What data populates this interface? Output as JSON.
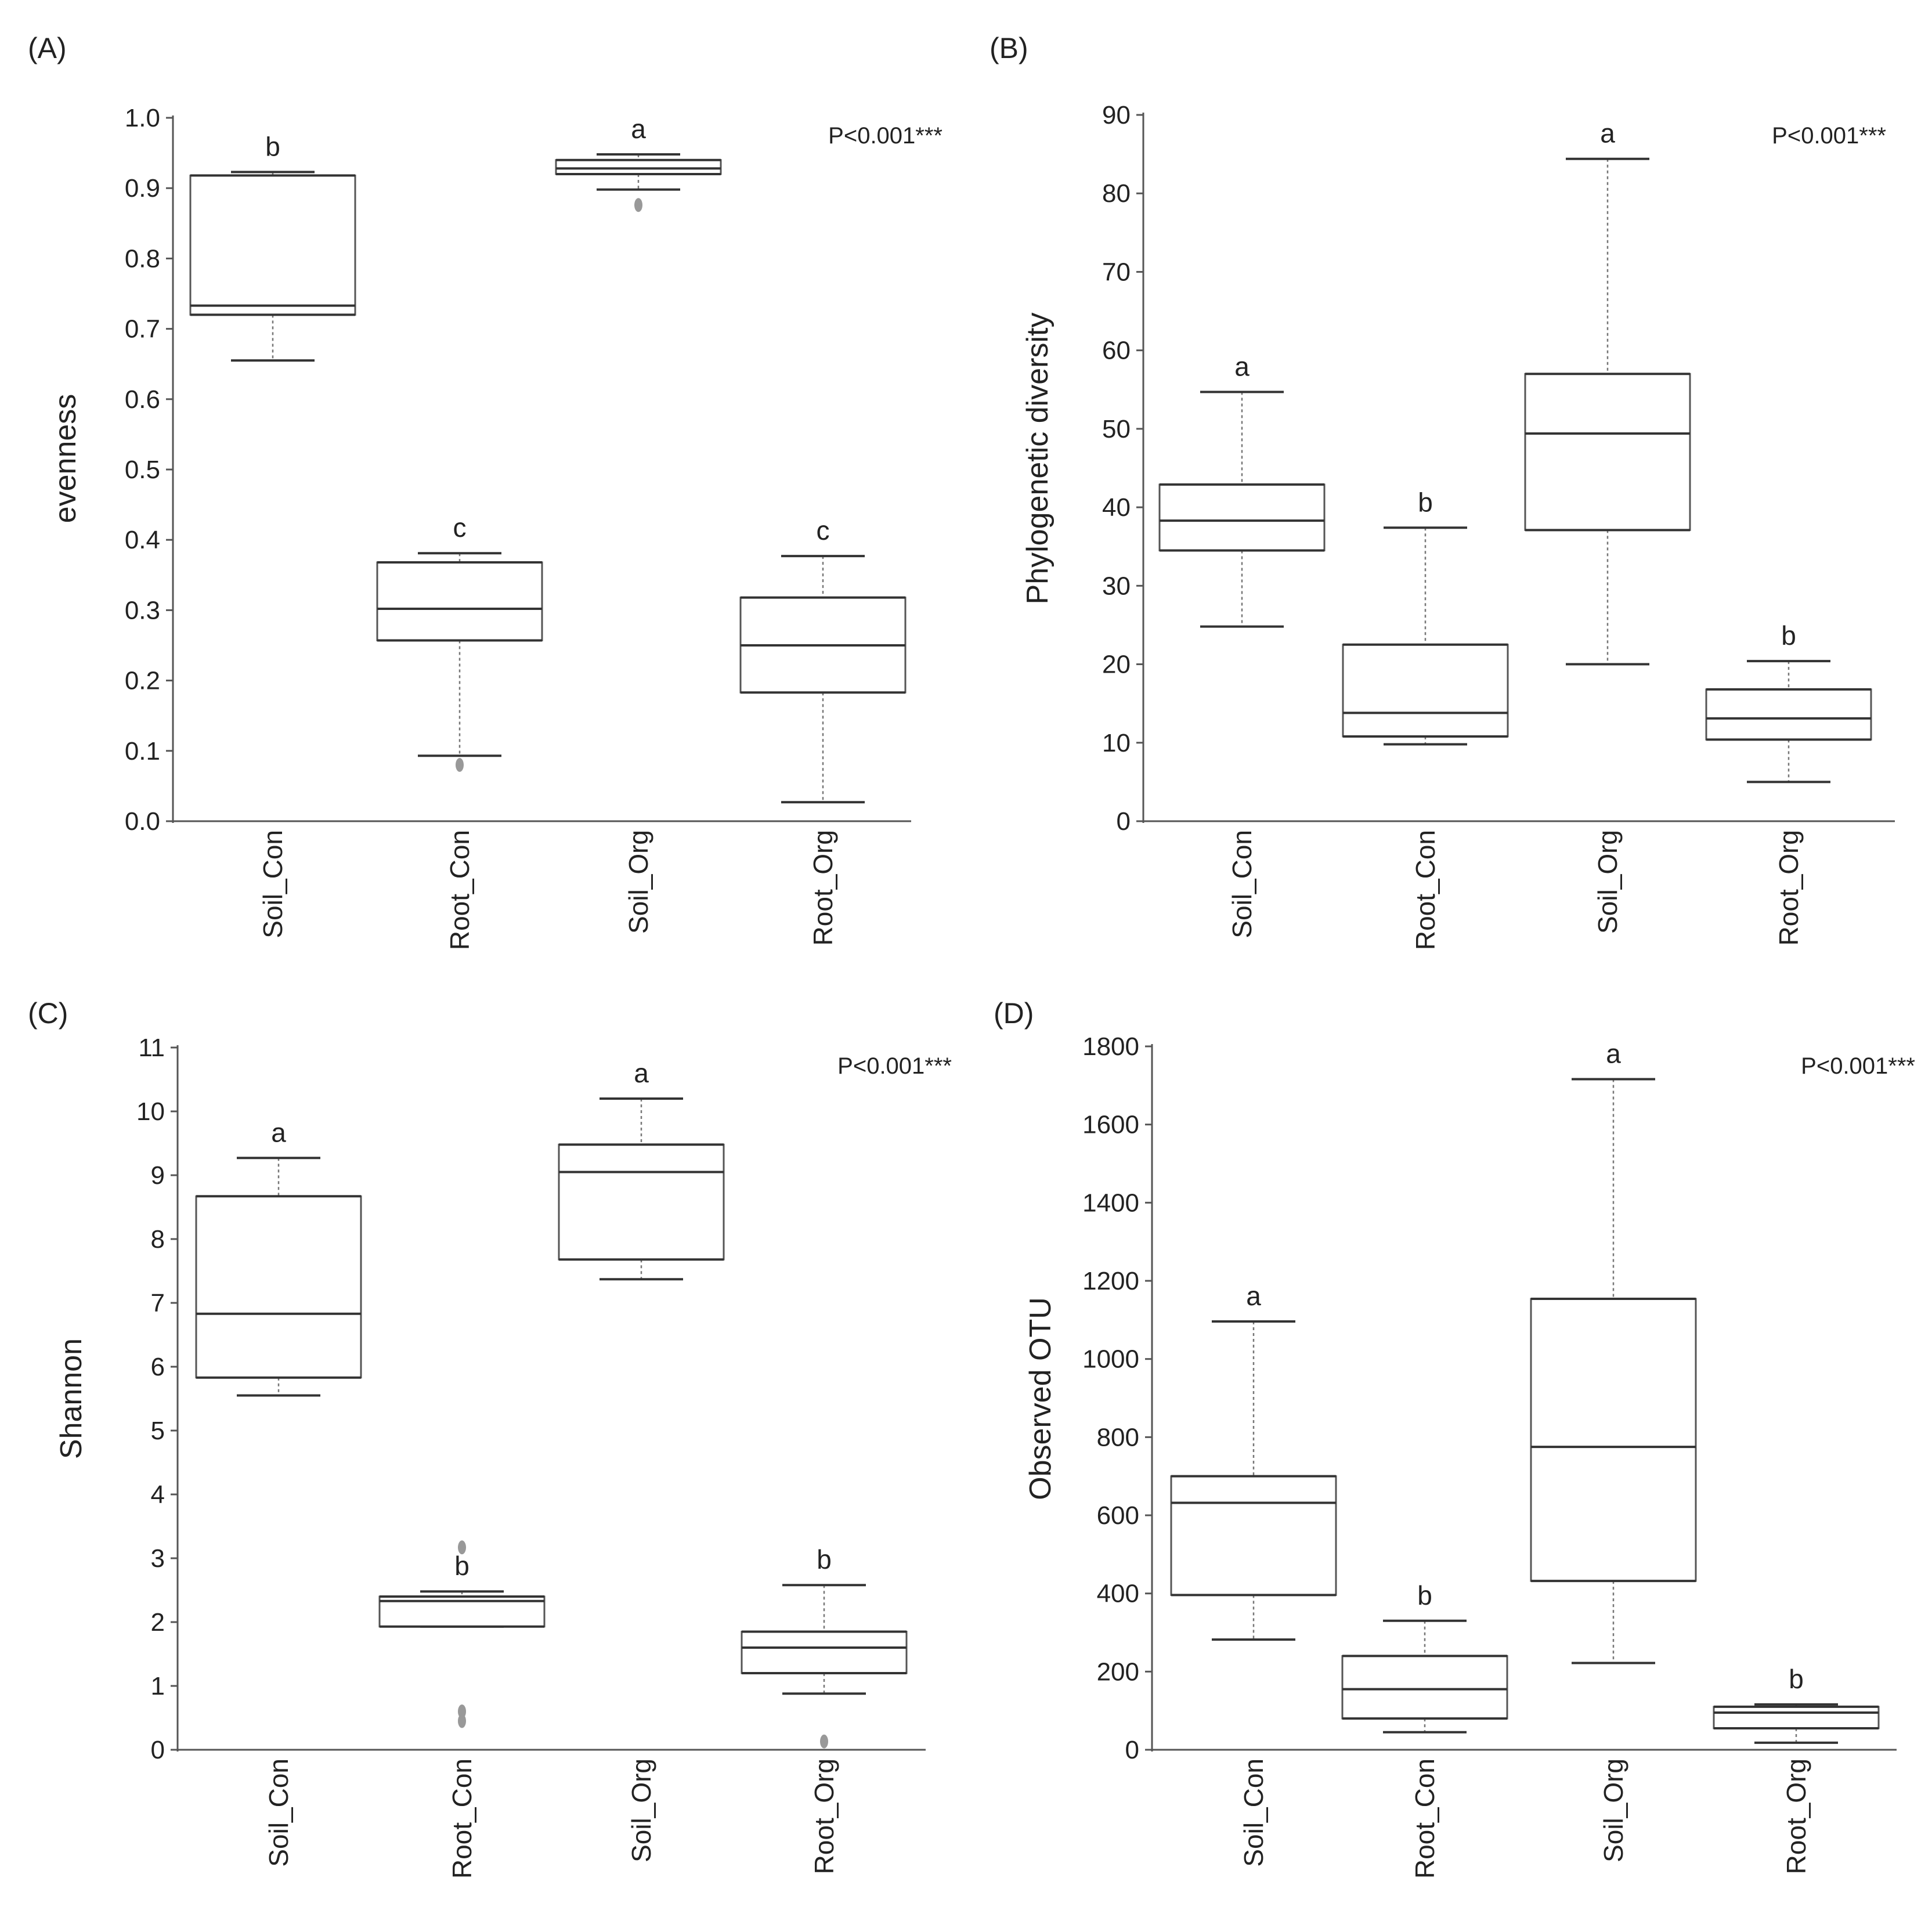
{
  "chart_data": [
    {
      "type": "box",
      "panel_label": "(A)",
      "ylabel": "evenness",
      "pvalue_text": "P<0.001***",
      "ylim": [
        0,
        1.0
      ],
      "yticks": [
        0.0,
        0.1,
        0.2,
        0.3,
        0.4,
        0.5,
        0.6,
        0.7,
        0.8,
        0.9,
        1.0
      ],
      "ytick_labels": [
        "0.0",
        "0.1",
        "0.2",
        "0.3",
        "0.4",
        "0.5",
        "0.6",
        "0.7",
        "0.8",
        "0.9",
        "1.0"
      ],
      "categories": [
        "Soil_Con",
        "Root_Con",
        "Soil_Org",
        "Root_Org"
      ],
      "boxes": [
        {
          "whisker_low": 0.655,
          "q1": 0.72,
          "median": 0.733,
          "q3": 0.918,
          "whisker_high": 0.923,
          "outliers": [],
          "letter": "b"
        },
        {
          "whisker_low": 0.093,
          "q1": 0.257,
          "median": 0.302,
          "q3": 0.368,
          "whisker_high": 0.381,
          "outliers": [
            0.08
          ],
          "letter": "c"
        },
        {
          "whisker_low": 0.898,
          "q1": 0.92,
          "median": 0.928,
          "q3": 0.94,
          "whisker_high": 0.948,
          "outliers": [
            0.876
          ],
          "letter": "a"
        },
        {
          "whisker_low": 0.027,
          "q1": 0.183,
          "median": 0.25,
          "q3": 0.318,
          "whisker_high": 0.377,
          "outliers": [],
          "letter": "c"
        }
      ]
    },
    {
      "type": "box",
      "panel_label": "(B)",
      "ylabel": "Phylogenetic diversity",
      "pvalue_text": "P<0.001***",
      "ylim": [
        0,
        90
      ],
      "yticks": [
        0,
        10,
        20,
        30,
        40,
        50,
        60,
        70,
        80,
        90
      ],
      "ytick_labels": [
        "0",
        "10",
        "20",
        "30",
        "40",
        "50",
        "60",
        "70",
        "80",
        "90"
      ],
      "categories": [
        "Soil_Con",
        "Root_Con",
        "Soil_Org",
        "Root_Org"
      ],
      "boxes": [
        {
          "whisker_low": 24.8,
          "q1": 34.5,
          "median": 38.3,
          "q3": 42.9,
          "whisker_high": 54.7,
          "outliers": [],
          "letter": "a"
        },
        {
          "whisker_low": 9.8,
          "q1": 10.8,
          "median": 13.8,
          "q3": 22.5,
          "whisker_high": 37.4,
          "outliers": [],
          "letter": "b"
        },
        {
          "whisker_low": 20.0,
          "q1": 37.1,
          "median": 49.4,
          "q3": 57.0,
          "whisker_high": 84.4,
          "outliers": [],
          "letter": "a"
        },
        {
          "whisker_low": 5.0,
          "q1": 10.4,
          "median": 13.1,
          "q3": 16.8,
          "whisker_high": 20.4,
          "outliers": [],
          "letter": "b"
        }
      ]
    },
    {
      "type": "box",
      "panel_label": "(C)",
      "ylabel": "Shannon",
      "pvalue_text": "P<0.001***",
      "ylim": [
        0,
        11
      ],
      "yticks": [
        0,
        1,
        2,
        3,
        4,
        5,
        6,
        7,
        8,
        9,
        10,
        11
      ],
      "ytick_labels": [
        "0",
        "1",
        "2",
        "3",
        "4",
        "5",
        "6",
        "7",
        "8",
        "9",
        "10",
        "11"
      ],
      "categories": [
        "Soil_Con",
        "Root_Con",
        "Soil_Org",
        "Root_Org"
      ],
      "boxes": [
        {
          "whisker_low": 5.55,
          "q1": 5.83,
          "median": 6.83,
          "q3": 8.67,
          "whisker_high": 9.27,
          "outliers": [],
          "letter": "a"
        },
        {
          "whisker_low": 1.93,
          "q1": 1.93,
          "median": 2.33,
          "q3": 2.4,
          "whisker_high": 2.48,
          "outliers": [
            3.17,
            0.6,
            0.45
          ],
          "letter": "b"
        },
        {
          "whisker_low": 7.37,
          "q1": 7.68,
          "median": 9.05,
          "q3": 9.48,
          "whisker_high": 10.2,
          "outliers": [],
          "letter": "a"
        },
        {
          "whisker_low": 0.88,
          "q1": 1.2,
          "median": 1.6,
          "q3": 1.85,
          "whisker_high": 2.58,
          "outliers": [
            0.13
          ],
          "letter": "b"
        }
      ]
    },
    {
      "type": "box",
      "panel_label": "(D)",
      "ylabel": "Observed OTU",
      "pvalue_text": "P<0.001***",
      "ylim": [
        0,
        1800
      ],
      "yticks": [
        0,
        200,
        400,
        600,
        800,
        1000,
        1200,
        1400,
        1600,
        1800
      ],
      "ytick_labels": [
        "0",
        "200",
        "400",
        "600",
        "800",
        "1000",
        "1200",
        "1400",
        "1600",
        "1800"
      ],
      "categories": [
        "Soil_Con",
        "Root_Con",
        "Soil_Org",
        "Root_Org"
      ],
      "boxes": [
        {
          "whisker_low": 282,
          "q1": 396,
          "median": 632,
          "q3": 700,
          "whisker_high": 1096,
          "outliers": [],
          "letter": "a"
        },
        {
          "whisker_low": 45,
          "q1": 80,
          "median": 155,
          "q3": 240,
          "whisker_high": 330,
          "outliers": [],
          "letter": "b"
        },
        {
          "whisker_low": 222,
          "q1": 432,
          "median": 775,
          "q3": 1154,
          "whisker_high": 1716,
          "outliers": [],
          "letter": "a"
        },
        {
          "whisker_low": 18,
          "q1": 55,
          "median": 95,
          "q3": 110,
          "whisker_high": 116,
          "outliers": [],
          "letter": "b"
        }
      ]
    }
  ]
}
